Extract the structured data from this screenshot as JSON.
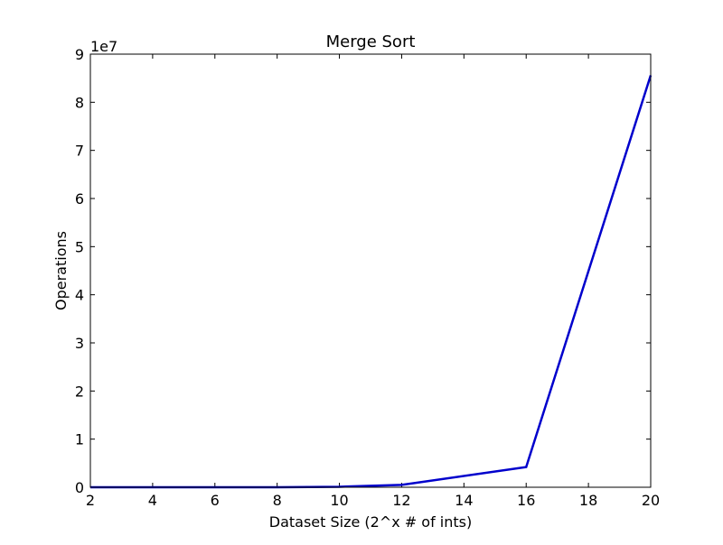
{
  "chart_data": {
    "type": "line",
    "title": "Merge Sort",
    "xlabel": "Dataset Size (2^x # of ints)",
    "ylabel": "Operations",
    "y_offset_label": "1e7",
    "xlim": [
      2,
      20
    ],
    "ylim": [
      0,
      9
    ],
    "xticks": [
      2,
      4,
      6,
      8,
      10,
      12,
      14,
      16,
      18,
      20
    ],
    "yticks": [
      0,
      1,
      2,
      3,
      4,
      5,
      6,
      7,
      8,
      9
    ],
    "grid": false,
    "series": [
      {
        "color": "#0000cc",
        "x": [
          2,
          4,
          8,
          10,
          12,
          16,
          20
        ],
        "y": [
          0.0,
          0.0,
          0.001,
          0.01,
          0.05,
          0.42,
          8.56
        ]
      }
    ]
  }
}
